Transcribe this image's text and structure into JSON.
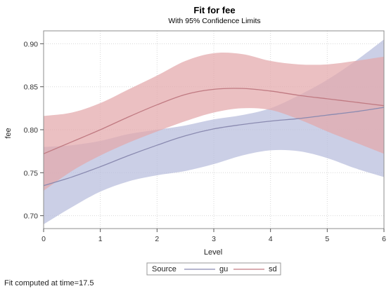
{
  "chart_data": {
    "type": "line",
    "title": "Fit for fee",
    "subtitle": "With 95% Confidence Limits",
    "xlabel": "Level",
    "ylabel": "fee",
    "xlim": [
      0,
      6
    ],
    "ylim": [
      0.685,
      0.915
    ],
    "x_ticks": [
      0,
      1,
      2,
      3,
      4,
      5,
      6
    ],
    "y_ticks": [
      0.7,
      0.75,
      0.8,
      0.85,
      0.9
    ],
    "y_tick_labels": [
      "0.70",
      "0.75",
      "0.80",
      "0.85",
      "0.90"
    ],
    "grid": true,
    "legend": {
      "title": "Source",
      "position": "bottom-center",
      "entries": [
        {
          "name": "gu",
          "color": "#8a8ab0"
        },
        {
          "name": "sd",
          "color": "#c07a82"
        }
      ]
    },
    "series": [
      {
        "name": "gu",
        "color": "#8a8ab0",
        "band_color": "#b7bddd",
        "x": [
          0,
          0.5,
          1,
          1.5,
          2,
          2.5,
          3,
          3.5,
          4,
          4.5,
          5,
          5.5,
          6
        ],
        "fit": [
          0.735,
          0.745,
          0.757,
          0.77,
          0.782,
          0.793,
          0.801,
          0.806,
          0.81,
          0.813,
          0.817,
          0.821,
          0.826
        ],
        "lower": [
          0.69,
          0.71,
          0.728,
          0.74,
          0.747,
          0.752,
          0.76,
          0.77,
          0.776,
          0.775,
          0.767,
          0.755,
          0.745
        ],
        "upper": [
          0.78,
          0.782,
          0.787,
          0.795,
          0.8,
          0.805,
          0.812,
          0.817,
          0.825,
          0.84,
          0.858,
          0.88,
          0.905
        ]
      },
      {
        "name": "sd",
        "color": "#c07a82",
        "band_color": "#e3a7ab",
        "x": [
          0,
          0.5,
          1,
          1.5,
          2,
          2.5,
          3,
          3.5,
          4,
          4.5,
          5,
          5.5,
          6
        ],
        "fit": [
          0.772,
          0.786,
          0.8,
          0.815,
          0.829,
          0.841,
          0.847,
          0.848,
          0.845,
          0.84,
          0.836,
          0.832,
          0.828
        ],
        "lower": [
          0.729,
          0.752,
          0.77,
          0.785,
          0.798,
          0.81,
          0.82,
          0.825,
          0.823,
          0.812,
          0.798,
          0.785,
          0.772
        ],
        "upper": [
          0.816,
          0.82,
          0.831,
          0.847,
          0.863,
          0.88,
          0.889,
          0.888,
          0.88,
          0.876,
          0.876,
          0.88,
          0.885
        ]
      }
    ]
  },
  "footnote": "Fit computed at time=17.5"
}
